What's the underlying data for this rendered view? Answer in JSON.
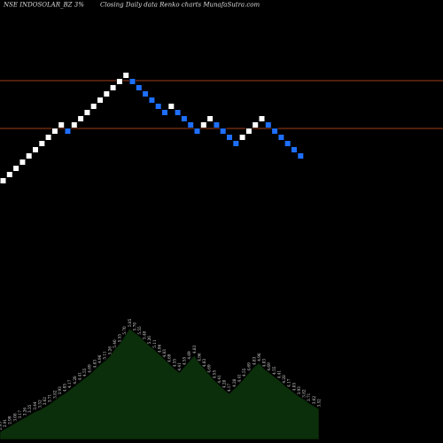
{
  "header": {
    "symbol": "NSE INDOSOLAR_BZ 3%",
    "description": "Closing Daily data  Renko  charts MunafaSutra.com"
  },
  "colors": {
    "background": "#000000",
    "up_brick": "#ffffff",
    "down_brick": "#1e6fff",
    "level_line": "#a0401a",
    "volume_fill": "#0b2e0b",
    "volume_outline": "#000000"
  },
  "chart_data": {
    "type": "renko",
    "bricks": [
      "up",
      "up",
      "up",
      "up",
      "up",
      "up",
      "up",
      "up",
      "up",
      "up",
      "down",
      "up",
      "up",
      "up",
      "up",
      "up",
      "up",
      "up",
      "up",
      "up",
      "down",
      "down",
      "down",
      "down",
      "down",
      "down",
      "up",
      "down",
      "down",
      "down",
      "down",
      "up",
      "up",
      "down",
      "down",
      "down",
      "down",
      "up",
      "up",
      "up",
      "up",
      "down",
      "down",
      "down",
      "down",
      "down",
      "down"
    ],
    "level_lines": [
      52.5,
      45.3
    ],
    "volume_panel": {
      "type": "area",
      "labels": [
        "2.85",
        "2.91",
        "2.99",
        "3.08",
        "3.17",
        "3.26",
        "3.35",
        "3.44",
        "3.52",
        "3.62",
        "3.71",
        "3.82",
        "3.93",
        "4.05",
        "4.17",
        "4.28",
        "4.41",
        "4.55",
        "4.69",
        "4.83",
        "4.96",
        "5.11",
        "5.26",
        "5.40",
        "5.55",
        "5.70",
        "5.85",
        "5.70",
        "5.55",
        "5.40",
        "5.26",
        "5.11",
        "4.96",
        "4.83",
        "4.69",
        "4.55",
        "4.41",
        "4.55",
        "4.69",
        "4.83",
        "4.96",
        "4.83",
        "4.69",
        "4.55",
        "4.41",
        "4.28",
        "4.17",
        "4.28",
        "4.41",
        "4.55",
        "4.69",
        "4.83",
        "4.96",
        "4.83",
        "4.69",
        "4.55",
        "4.41",
        "4.28",
        "4.17",
        "4.05",
        "3.93",
        "3.82",
        "3.71",
        "3.62",
        "3.52"
      ],
      "values": [
        8,
        11,
        14,
        17,
        20,
        23,
        26,
        29,
        31,
        34,
        37,
        41,
        45,
        48,
        52,
        56,
        60,
        64,
        68,
        73,
        78,
        82,
        87,
        94,
        100,
        108,
        116,
        112,
        108,
        103,
        98,
        94,
        89,
        84,
        79,
        74,
        70,
        76,
        82,
        88,
        80,
        74,
        68,
        62,
        57,
        52,
        48,
        53,
        58,
        64,
        70,
        76,
        80,
        74,
        70,
        66,
        62,
        57,
        53,
        49,
        45,
        42,
        38,
        35,
        32
      ]
    }
  }
}
